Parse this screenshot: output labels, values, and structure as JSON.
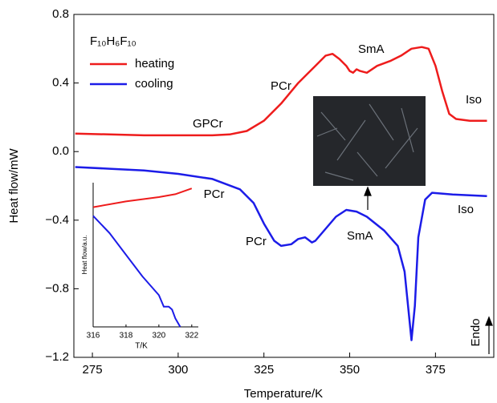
{
  "chart_data": [
    {
      "type": "line",
      "x_label": "Temperature/K",
      "y_label": "Heat flow/mW",
      "legend_title": "F₁₀H₆F₁₀",
      "legend": "upper left",
      "xlim": [
        269.6,
        392
      ],
      "xticks": [
        275,
        300,
        325,
        350,
        375
      ],
      "ylim": [
        -1.2,
        0.8
      ],
      "yticks": [
        {
          "value": -1.2,
          "label": "−1.2"
        },
        {
          "value": -0.8,
          "label": "−0.8"
        },
        {
          "value": -0.4,
          "label": "−0.4"
        },
        {
          "value": 0,
          "label": "0.0"
        },
        0.4,
        0.8
      ],
      "series": [
        {
          "name": "heating",
          "color": "#ee1c1c",
          "x": [
            270,
            280,
            290,
            300,
            310,
            315,
            320,
            325,
            330,
            335,
            340,
            343,
            345,
            347,
            349,
            350,
            351,
            352,
            353,
            355,
            358,
            362,
            365,
            368,
            371,
            373,
            375,
            377,
            379,
            381,
            385,
            390
          ],
          "values": [
            0.105,
            0.1,
            0.095,
            0.095,
            0.095,
            0.1,
            0.12,
            0.18,
            0.28,
            0.4,
            0.5,
            0.56,
            0.57,
            0.54,
            0.5,
            0.47,
            0.46,
            0.48,
            0.47,
            0.46,
            0.5,
            0.53,
            0.56,
            0.6,
            0.61,
            0.6,
            0.5,
            0.35,
            0.22,
            0.19,
            0.18,
            0.18
          ]
        },
        {
          "name": "cooling",
          "color": "#1c1ce8",
          "x": [
            270,
            280,
            290,
            300,
            310,
            318,
            322,
            325,
            328,
            330,
            333,
            335,
            337,
            339,
            340,
            343,
            346,
            349,
            352,
            355,
            360,
            364,
            366,
            367,
            368,
            369,
            370,
            372,
            374,
            380,
            390
          ],
          "values": [
            -0.09,
            -0.1,
            -0.11,
            -0.13,
            -0.16,
            -0.22,
            -0.3,
            -0.42,
            -0.52,
            -0.55,
            -0.54,
            -0.51,
            -0.5,
            -0.53,
            -0.52,
            -0.45,
            -0.38,
            -0.34,
            -0.35,
            -0.38,
            -0.46,
            -0.55,
            -0.7,
            -0.9,
            -1.1,
            -0.9,
            -0.5,
            -0.28,
            -0.24,
            -0.25,
            -0.26
          ]
        }
      ],
      "annotations": [
        "GPCr",
        "PCr",
        "SmA",
        "Iso",
        "GPCr",
        "PCr",
        "SmA",
        "Iso",
        "Endo"
      ]
    },
    {
      "type": "line",
      "x_label": "T/K",
      "y_label": "Heat flow/a.u.",
      "xlim": [
        316,
        322.4
      ],
      "xticks": [
        316,
        318,
        320,
        322
      ],
      "ylim": [
        0,
        1
      ],
      "series": [
        {
          "color": "#ee1c1c",
          "x": [
            316,
            318,
            320,
            321,
            322
          ],
          "values": [
            0.83,
            0.87,
            0.9,
            0.92,
            0.96
          ]
        },
        {
          "color": "#1c1ce8",
          "x": [
            316,
            317,
            318,
            319,
            320,
            320.3,
            320.6,
            320.8,
            321,
            321.3
          ],
          "values": [
            0.77,
            0.65,
            0.5,
            0.35,
            0.22,
            0.14,
            0.14,
            0.12,
            0.06,
            0
          ]
        }
      ]
    }
  ]
}
